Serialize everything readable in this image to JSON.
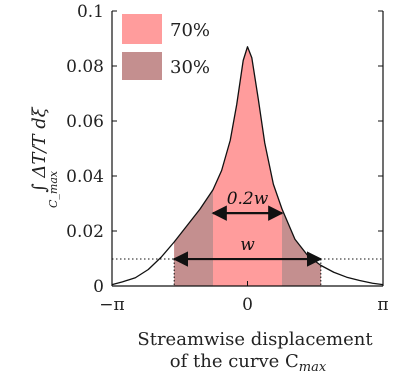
{
  "chart_data": {
    "type": "area",
    "title": "",
    "xlabel_line1": "Streamwise displacement",
    "xlabel_line2": "of the curve C",
    "xlabel_sub": "max",
    "ylabel": "∫ ΔT/T dξ",
    "ylabel_sub": "C_max",
    "xlim": [
      -3.1416,
      3.1416
    ],
    "ylim": [
      0,
      0.1
    ],
    "grid": false,
    "legend_position": "top-left",
    "x_ticks": [
      {
        "value": -3.1416,
        "label": "−π"
      },
      {
        "value": 0,
        "label": "0"
      },
      {
        "value": 3.1416,
        "label": "π"
      }
    ],
    "y_ticks": [
      {
        "value": 0,
        "label": "0"
      },
      {
        "value": 0.02,
        "label": "0.02"
      },
      {
        "value": 0.04,
        "label": "0.04"
      },
      {
        "value": 0.06,
        "label": "0.06"
      },
      {
        "value": 0.08,
        "label": "0.08"
      },
      {
        "value": 0.1,
        "label": "0.1"
      }
    ],
    "curve": {
      "x": [
        -3.14,
        -2.9,
        -2.6,
        -2.3,
        -2.0,
        -1.7,
        -1.4,
        -1.1,
        -0.8,
        -0.6,
        -0.4,
        -0.25,
        -0.1,
        0,
        0.1,
        0.25,
        0.4,
        0.6,
        0.8,
        1.1,
        1.4,
        1.7,
        2.0,
        2.3,
        2.6,
        2.9,
        3.14
      ],
      "y": [
        0.0005,
        0.0015,
        0.003,
        0.006,
        0.0105,
        0.016,
        0.022,
        0.028,
        0.035,
        0.042,
        0.053,
        0.066,
        0.082,
        0.087,
        0.083,
        0.068,
        0.052,
        0.037,
        0.028,
        0.017,
        0.011,
        0.0075,
        0.005,
        0.0032,
        0.002,
        0.001,
        0.0005
      ]
    },
    "threshold_y": 0.0098,
    "regions": [
      {
        "name": "70%",
        "x_from": -1.7,
        "x_to": 1.7,
        "color": "#ff9c9c"
      },
      {
        "name": "30%",
        "x_from": -1.7,
        "x_to": -0.8,
        "color": "#c48f8f"
      },
      {
        "name": "30%",
        "x_from": 0.8,
        "x_to": 1.7,
        "color": "#c48f8f"
      }
    ],
    "legend": [
      {
        "label": "70%",
        "color": "#ff9c9c"
      },
      {
        "label": "30%",
        "color": "#c48f8f"
      }
    ],
    "annotations": [
      {
        "label": "0.2w",
        "x_from": -0.8,
        "x_to": 0.8,
        "y": 0.0265
      },
      {
        "label": "w",
        "x_from": -1.7,
        "x_to": 1.7,
        "y": 0.0098
      }
    ]
  }
}
